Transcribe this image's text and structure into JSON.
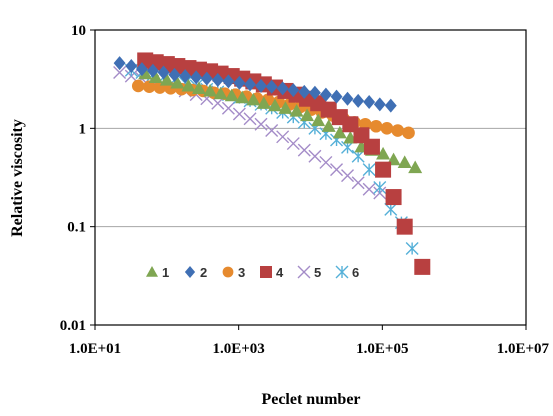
{
  "chart_data": {
    "type": "scatter",
    "title": "",
    "xlabel": "Peclet number",
    "ylabel": "Relative viscosity",
    "xscale": "log",
    "yscale": "log",
    "xlim": [
      10,
      10000000
    ],
    "ylim": [
      0.01,
      10
    ],
    "x_tick_labels": [
      "1.0E+01",
      "1.0E+03",
      "1.0E+05",
      "1.0E+07"
    ],
    "x_tick_values": [
      10,
      1000,
      100000,
      10000000
    ],
    "y_tick_labels": [
      "0.01",
      "0.1",
      "1",
      "10"
    ],
    "y_tick_values": [
      0.01,
      0.1,
      1,
      10
    ],
    "grid": "horizontal",
    "legend_position": "bottom-left inside plot",
    "series": [
      {
        "name": "1",
        "marker": "triangle",
        "color": "#7fa652",
        "points": [
          [
            50,
            3.6
          ],
          [
            70,
            3.3
          ],
          [
            100,
            3.1
          ],
          [
            140,
            2.9
          ],
          [
            200,
            2.7
          ],
          [
            280,
            2.55
          ],
          [
            400,
            2.4
          ],
          [
            560,
            2.25
          ],
          [
            800,
            2.15
          ],
          [
            1120,
            2.05
          ],
          [
            1600,
            1.95
          ],
          [
            2240,
            1.8
          ],
          [
            3200,
            1.7
          ],
          [
            4480,
            1.6
          ],
          [
            6400,
            1.5
          ],
          [
            8960,
            1.35
          ],
          [
            12800,
            1.2
          ],
          [
            17920,
            1.05
          ],
          [
            25600,
            0.9
          ],
          [
            35840,
            0.8
          ],
          [
            51200,
            0.65
          ],
          [
            71680,
            0.6
          ],
          [
            102400,
            0.55
          ],
          [
            143360,
            0.48
          ],
          [
            204800,
            0.45
          ],
          [
            286720,
            0.4
          ]
        ]
      },
      {
        "name": "2",
        "marker": "diamond",
        "color": "#3f6fb4",
        "points": [
          [
            22,
            4.6
          ],
          [
            32,
            4.3
          ],
          [
            45,
            4.0
          ],
          [
            64,
            3.85
          ],
          [
            90,
            3.7
          ],
          [
            128,
            3.5
          ],
          [
            180,
            3.4
          ],
          [
            256,
            3.3
          ],
          [
            360,
            3.2
          ],
          [
            512,
            3.1
          ],
          [
            720,
            3.0
          ],
          [
            1024,
            2.9
          ],
          [
            1440,
            2.8
          ],
          [
            2048,
            2.7
          ],
          [
            2880,
            2.65
          ],
          [
            4096,
            2.55
          ],
          [
            5760,
            2.45
          ],
          [
            8192,
            2.35
          ],
          [
            11520,
            2.3
          ],
          [
            16384,
            2.2
          ],
          [
            23040,
            2.1
          ],
          [
            32768,
            2.0
          ],
          [
            46080,
            1.9
          ],
          [
            65536,
            1.85
          ],
          [
            92160,
            1.75
          ],
          [
            131072,
            1.7
          ]
        ]
      },
      {
        "name": "3",
        "marker": "circle",
        "color": "#e68a2e",
        "points": [
          [
            40,
            2.7
          ],
          [
            57,
            2.65
          ],
          [
            80,
            2.6
          ],
          [
            113,
            2.55
          ],
          [
            160,
            2.5
          ],
          [
            226,
            2.45
          ],
          [
            320,
            2.4
          ],
          [
            452,
            2.3
          ],
          [
            640,
            2.25
          ],
          [
            905,
            2.2
          ],
          [
            1280,
            2.1
          ],
          [
            1810,
            2.0
          ],
          [
            2560,
            1.95
          ],
          [
            3620,
            1.85
          ],
          [
            5120,
            1.75
          ],
          [
            7240,
            1.65
          ],
          [
            10240,
            1.55
          ],
          [
            14480,
            1.45
          ],
          [
            20480,
            1.35
          ],
          [
            28960,
            1.25
          ],
          [
            40960,
            1.15
          ],
          [
            57920,
            1.1
          ],
          [
            81920,
            1.05
          ],
          [
            115840,
            1.0
          ],
          [
            163840,
            0.95
          ],
          [
            231680,
            0.9
          ]
        ]
      },
      {
        "name": "4",
        "marker": "square",
        "color": "#b84040",
        "points": [
          [
            50,
            4.9
          ],
          [
            70,
            4.7
          ],
          [
            100,
            4.5
          ],
          [
            140,
            4.3
          ],
          [
            200,
            4.1
          ],
          [
            280,
            3.95
          ],
          [
            400,
            3.8
          ],
          [
            560,
            3.6
          ],
          [
            800,
            3.4
          ],
          [
            1120,
            3.2
          ],
          [
            1600,
            3.0
          ],
          [
            2240,
            2.8
          ],
          [
            3200,
            2.6
          ],
          [
            4480,
            2.4
          ],
          [
            6400,
            2.2
          ],
          [
            8960,
            2.0
          ],
          [
            12800,
            1.8
          ],
          [
            17920,
            1.55
          ],
          [
            25600,
            1.3
          ],
          [
            35840,
            1.1
          ],
          [
            51200,
            0.85
          ],
          [
            71680,
            0.65
          ],
          [
            102400,
            0.38
          ],
          [
            143360,
            0.2
          ],
          [
            204800,
            0.1
          ],
          [
            360000,
            0.039
          ]
        ]
      },
      {
        "name": "5",
        "marker": "x",
        "color": "#a48cc8",
        "points": [
          [
            22,
            3.7
          ],
          [
            32,
            3.4
          ],
          [
            45,
            3.2
          ],
          [
            64,
            3.0
          ],
          [
            90,
            2.8
          ],
          [
            128,
            2.6
          ],
          [
            180,
            2.4
          ],
          [
            256,
            2.2
          ],
          [
            360,
            2.0
          ],
          [
            512,
            1.8
          ],
          [
            720,
            1.6
          ],
          [
            1024,
            1.4
          ],
          [
            1440,
            1.25
          ],
          [
            2048,
            1.1
          ],
          [
            2880,
            0.95
          ],
          [
            4096,
            0.82
          ],
          [
            5760,
            0.7
          ],
          [
            8192,
            0.6
          ],
          [
            11520,
            0.52
          ],
          [
            16384,
            0.45
          ],
          [
            23040,
            0.38
          ],
          [
            32768,
            0.33
          ],
          [
            46080,
            0.28
          ],
          [
            65536,
            0.24
          ],
          [
            92160,
            0.22
          ]
        ]
      },
      {
        "name": "6",
        "marker": "asterisk",
        "color": "#55b0d8",
        "points": [
          [
            32,
            3.9
          ],
          [
            45,
            3.7
          ],
          [
            64,
            3.5
          ],
          [
            90,
            3.3
          ],
          [
            128,
            3.1
          ],
          [
            180,
            2.9
          ],
          [
            256,
            2.7
          ],
          [
            360,
            2.5
          ],
          [
            512,
            2.35
          ],
          [
            720,
            2.2
          ],
          [
            1024,
            2.05
          ],
          [
            1440,
            1.9
          ],
          [
            2048,
            1.75
          ],
          [
            2880,
            1.6
          ],
          [
            4096,
            1.45
          ],
          [
            5760,
            1.3
          ],
          [
            8192,
            1.15
          ],
          [
            11520,
            1.0
          ],
          [
            16384,
            0.88
          ],
          [
            23040,
            0.76
          ],
          [
            32768,
            0.64
          ],
          [
            46080,
            0.52
          ],
          [
            65536,
            0.38
          ],
          [
            92160,
            0.25
          ],
          [
            131072,
            0.15
          ],
          [
            184320,
            0.11
          ],
          [
            260000,
            0.06
          ]
        ]
      }
    ]
  }
}
